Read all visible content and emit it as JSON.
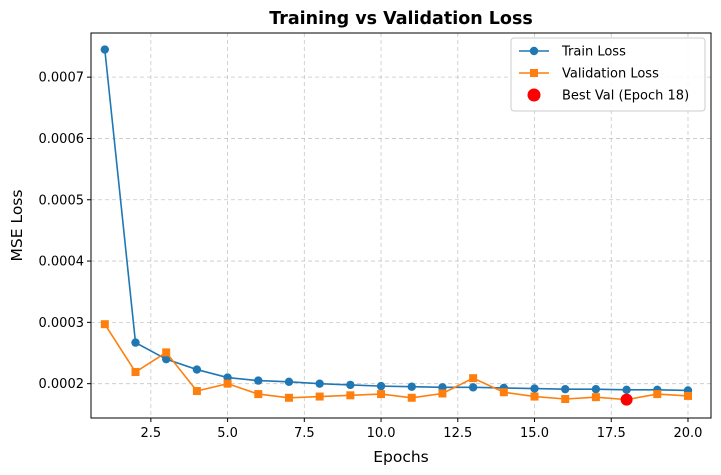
{
  "chart_data": {
    "type": "line",
    "title": "Training vs Validation Loss",
    "xlabel": "Epochs",
    "ylabel": "MSE Loss",
    "xlim": [
      0.55,
      20.75
    ],
    "ylim": [
      0.000144,
      0.000772
    ],
    "xticks": [
      2.5,
      5.0,
      7.5,
      10.0,
      12.5,
      15.0,
      17.5,
      20.0
    ],
    "xtick_labels": [
      "2.5",
      "5.0",
      "7.5",
      "10.0",
      "12.5",
      "15.0",
      "17.5",
      "20.0"
    ],
    "yticks": [
      0.0002,
      0.0003,
      0.0004,
      0.0005,
      0.0006,
      0.0007
    ],
    "ytick_labels": [
      "0.0002",
      "0.0003",
      "0.0004",
      "0.0005",
      "0.0006",
      "0.0007"
    ],
    "grid": true,
    "legend_position": "top-right",
    "x": [
      1,
      2,
      3,
      4,
      5,
      6,
      7,
      8,
      9,
      10,
      11,
      12,
      13,
      14,
      15,
      16,
      17,
      18,
      19,
      20
    ],
    "series": [
      {
        "name": "Train Loss",
        "color": "#1f77b4",
        "marker": "circle",
        "values": [
          0.000745,
          0.000267,
          0.00024,
          0.000223,
          0.00021,
          0.000205,
          0.000203,
          0.0002,
          0.000198,
          0.000196,
          0.000195,
          0.000194,
          0.000194,
          0.000193,
          0.000192,
          0.000191,
          0.000191,
          0.00019,
          0.00019,
          0.000189
        ]
      },
      {
        "name": "Validation Loss",
        "color": "#ff7f0e",
        "marker": "square",
        "values": [
          0.000297,
          0.000219,
          0.000251,
          0.000188,
          0.0002,
          0.000183,
          0.000177,
          0.000179,
          0.000181,
          0.000183,
          0.000177,
          0.000184,
          0.000209,
          0.000186,
          0.000179,
          0.000175,
          0.000178,
          0.000174,
          0.000183,
          0.00018
        ]
      }
    ],
    "highlight": {
      "name": "Best Val (Epoch 18)",
      "color": "#ff0000",
      "marker": "circle",
      "x": 18,
      "y": 0.000174
    }
  }
}
